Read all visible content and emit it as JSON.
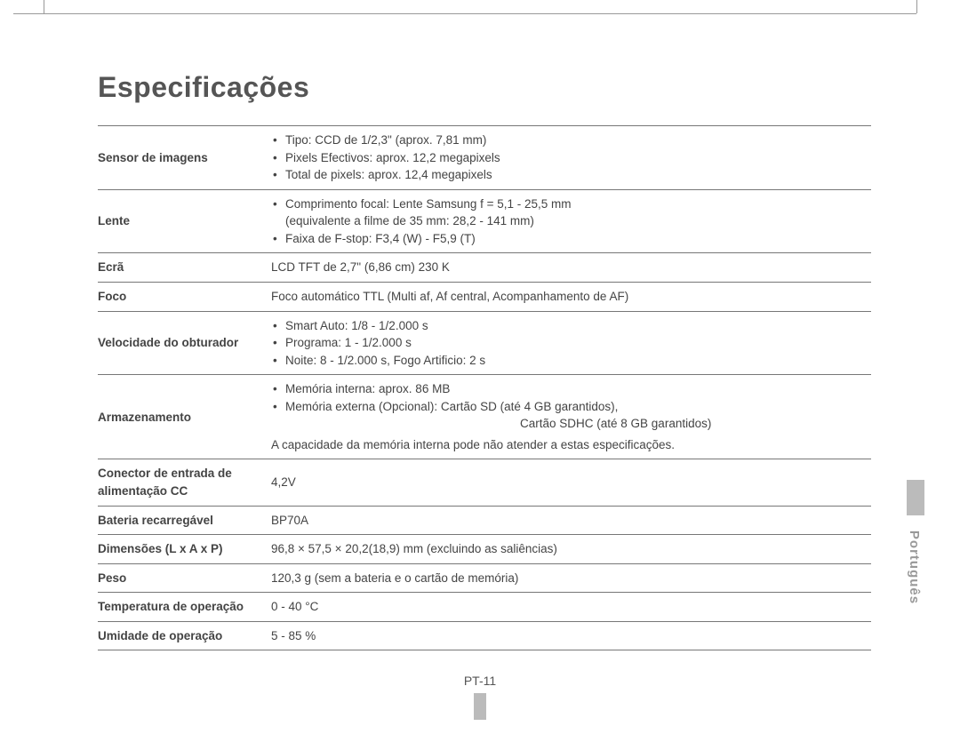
{
  "title": "Especificações",
  "language_label": "Português",
  "page_number": "PT-11",
  "rows": [
    {
      "key": "Sensor de imagens",
      "type": "list",
      "items": [
        "Tipo: CCD de 1/2,3\" (aprox. 7,81 mm)",
        "Pixels Efectivos: aprox. 12,2 megapixels",
        "Total de pixels: aprox. 12,4 megapixels"
      ]
    },
    {
      "key": "Lente",
      "type": "list",
      "items": [
        "Comprimento focal: Lente Samsung f = 5,1 - 25,5 mm\n(equivalente a filme de 35 mm: 28,2 - 141 mm)",
        "Faixa de F-stop: F3,4 (W) - F5,9 (T)"
      ]
    },
    {
      "key": "Ecrã",
      "type": "text",
      "text": "LCD TFT de 2,7\" (6,86 cm) 230 K"
    },
    {
      "key": "Foco",
      "type": "text",
      "text": "Foco automático TTL (Multi af, Af central, Acompanhamento de AF)"
    },
    {
      "key": "Velocidade do obturador",
      "type": "list",
      "items": [
        "Smart Auto: 1/8 - 1/2.000 s",
        "Programa: 1 - 1/2.000 s",
        "Noite: 8 - 1/2.000 s, Fogo Artificio: 2 s"
      ]
    },
    {
      "key": "Armazenamento",
      "type": "storage",
      "items": [
        "Memória interna: aprox. 86 MB",
        "Memória externa (Opcional): Cartão SD (até 4 GB garantidos),"
      ],
      "sub_indent": "Cartão SDHC (até 8 GB garantidos)",
      "note": "A capacidade da memória interna pode não atender a estas especificações."
    },
    {
      "key": "Conector de entrada de alimentação CC",
      "type": "text",
      "text": "4,2V"
    },
    {
      "key": "Bateria recarregável",
      "type": "text",
      "text": "BP70A"
    },
    {
      "key": "Dimensões (L x A x P)",
      "type": "text",
      "text": "96,8 × 57,5 × 20,2(18,9) mm (excluindo as saliências)"
    },
    {
      "key": "Peso",
      "type": "text",
      "text": "120,3 g (sem a bateria e o cartão de memória)"
    },
    {
      "key": "Temperatura de operação",
      "type": "text",
      "text": "0 - 40 °C"
    },
    {
      "key": "Umidade de operação",
      "type": "text",
      "text": "5 - 85 %"
    }
  ]
}
